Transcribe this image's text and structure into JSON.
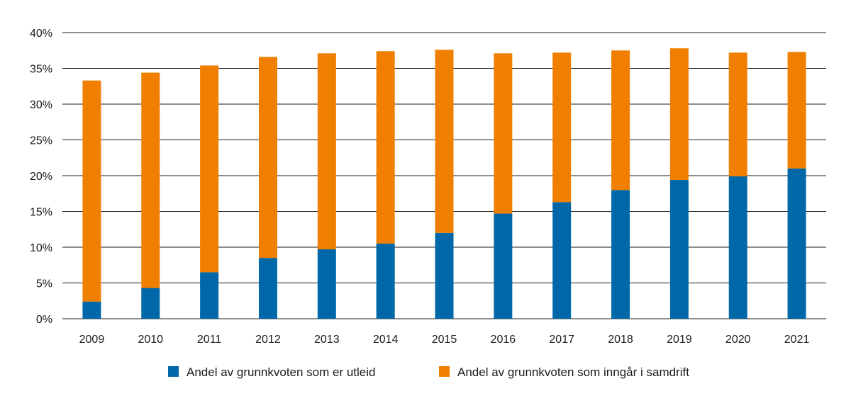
{
  "chart_data": {
    "type": "bar",
    "stacked": true,
    "title": "",
    "xlabel": "",
    "ylabel": "",
    "ylim": [
      0,
      40
    ],
    "yticks": [
      "0%",
      "5%",
      "10%",
      "15%",
      "20%",
      "25%",
      "30%",
      "35%",
      "40%"
    ],
    "grid": true,
    "legend_position": "bottom",
    "categories": [
      "2009",
      "2010",
      "2011",
      "2012",
      "2013",
      "2014",
      "2015",
      "2016",
      "2017",
      "2018",
      "2019",
      "2020",
      "2021"
    ],
    "series": [
      {
        "name": "Andel av grunnkvoten som er utleid",
        "color": "#0068a8",
        "values": [
          2.4,
          4.3,
          6.5,
          8.5,
          9.7,
          10.5,
          12.0,
          14.7,
          16.3,
          18.0,
          19.4,
          19.9,
          21.0
        ]
      },
      {
        "name": "Andel av grunnkvoten som inngår i samdrift",
        "color": "#f07f00",
        "values": [
          30.9,
          30.1,
          28.9,
          28.1,
          27.4,
          26.9,
          25.6,
          22.4,
          20.9,
          19.5,
          18.4,
          17.3,
          16.3
        ]
      }
    ]
  }
}
